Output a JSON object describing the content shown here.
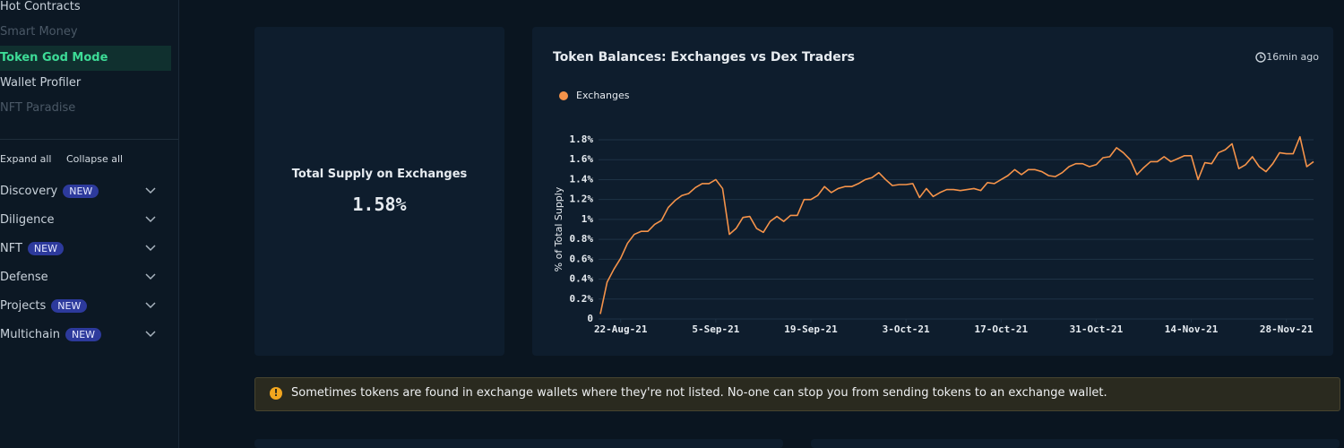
{
  "sidebar": {
    "nav_items": [
      "Hot Contracts",
      "Smart Money",
      "Token God Mode",
      "Wallet Profiler",
      "NFT Paradise"
    ],
    "expand_all": "Expand all",
    "collapse_all": "Collapse all",
    "sections": [
      {
        "label": "Discovery",
        "badge": "NEW"
      },
      {
        "label": "Diligence"
      },
      {
        "label": "NFT",
        "badge": "NEW"
      },
      {
        "label": "Defense"
      },
      {
        "label": "Projects",
        "badge": "NEW"
      },
      {
        "label": "Multichain",
        "badge": "NEW"
      }
    ]
  },
  "stat_card": {
    "title": "Total Supply on Exchanges",
    "value": "1.58%"
  },
  "chart_data": {
    "type": "line",
    "title": "Token Balances: Exchanges vs Dex Traders",
    "updated": "16min ago",
    "y_label": "% of Total Supply",
    "x": [
      "2021-08-19",
      "2021-08-20",
      "2021-08-21",
      "2021-08-22",
      "2021-08-23",
      "2021-08-24",
      "2021-08-25",
      "2021-08-26",
      "2021-08-27",
      "2021-08-28",
      "2021-08-29",
      "2021-08-30",
      "2021-08-31",
      "2021-09-01",
      "2021-09-02",
      "2021-09-03",
      "2021-09-04",
      "2021-09-05",
      "2021-09-06",
      "2021-09-07",
      "2021-09-08",
      "2021-09-09",
      "2021-09-10",
      "2021-09-11",
      "2021-09-12",
      "2021-09-13",
      "2021-09-14",
      "2021-09-15",
      "2021-09-16",
      "2021-09-17",
      "2021-09-18",
      "2021-09-19",
      "2021-09-20",
      "2021-09-21",
      "2021-09-22",
      "2021-09-23",
      "2021-09-24",
      "2021-09-25",
      "2021-09-26",
      "2021-09-27",
      "2021-09-28",
      "2021-09-29",
      "2021-09-30",
      "2021-10-01",
      "2021-10-02",
      "2021-10-03",
      "2021-10-04",
      "2021-10-05",
      "2021-10-06",
      "2021-10-07",
      "2021-10-08",
      "2021-10-09",
      "2021-10-10",
      "2021-10-11",
      "2021-10-12",
      "2021-10-13",
      "2021-10-14",
      "2021-10-15",
      "2021-10-16",
      "2021-10-17",
      "2021-10-18",
      "2021-10-19",
      "2021-10-20",
      "2021-10-21",
      "2021-10-22",
      "2021-10-23",
      "2021-10-24",
      "2021-10-25",
      "2021-10-26",
      "2021-10-27",
      "2021-10-28",
      "2021-10-29",
      "2021-10-30",
      "2021-10-31",
      "2021-11-01",
      "2021-11-02",
      "2021-11-03",
      "2021-11-04",
      "2021-11-05",
      "2021-11-06",
      "2021-11-07",
      "2021-11-08",
      "2021-11-09",
      "2021-11-10",
      "2021-11-11",
      "2021-11-12",
      "2021-11-13",
      "2021-11-14",
      "2021-11-15",
      "2021-11-16",
      "2021-11-17",
      "2021-11-18",
      "2021-11-19",
      "2021-11-20",
      "2021-11-21",
      "2021-11-22",
      "2021-11-23",
      "2021-11-24",
      "2021-11-25",
      "2021-11-26",
      "2021-11-27",
      "2021-11-28",
      "2021-11-29",
      "2021-11-30",
      "2021-12-01",
      "2021-12-02"
    ],
    "series": [
      {
        "name": "Exchanges",
        "color": "#f5934a",
        "values": [
          0.05,
          0.37,
          0.5,
          0.61,
          0.76,
          0.85,
          0.88,
          0.88,
          0.95,
          0.99,
          1.12,
          1.19,
          1.24,
          1.26,
          1.32,
          1.36,
          1.36,
          1.4,
          1.31,
          0.85,
          0.91,
          1.02,
          1.03,
          0.91,
          0.87,
          0.98,
          1.03,
          0.98,
          1.04,
          1.04,
          1.2,
          1.2,
          1.24,
          1.33,
          1.27,
          1.31,
          1.33,
          1.33,
          1.36,
          1.4,
          1.42,
          1.47,
          1.4,
          1.34,
          1.35,
          1.35,
          1.36,
          1.22,
          1.31,
          1.23,
          1.27,
          1.3,
          1.3,
          1.29,
          1.3,
          1.31,
          1.29,
          1.37,
          1.36,
          1.4,
          1.44,
          1.5,
          1.45,
          1.5,
          1.5,
          1.48,
          1.44,
          1.43,
          1.47,
          1.53,
          1.56,
          1.56,
          1.53,
          1.55,
          1.62,
          1.63,
          1.72,
          1.67,
          1.6,
          1.45,
          1.52,
          1.58,
          1.58,
          1.63,
          1.58,
          1.61,
          1.64,
          1.64,
          1.4,
          1.57,
          1.56,
          1.67,
          1.7,
          1.76,
          1.51,
          1.55,
          1.63,
          1.53,
          1.48,
          1.56,
          1.67,
          1.66,
          1.66,
          1.83,
          1.53,
          1.58
        ]
      }
    ],
    "xlim": [
      "2021-08-19",
      "2021-12-02"
    ],
    "xticks": [
      {
        "value": "2021-08-22",
        "label": "22-Aug-21"
      },
      {
        "value": "2021-09-05",
        "label": "5-Sep-21"
      },
      {
        "value": "2021-09-19",
        "label": "19-Sep-21"
      },
      {
        "value": "2021-10-03",
        "label": "3-Oct-21"
      },
      {
        "value": "2021-10-17",
        "label": "17-Oct-21"
      },
      {
        "value": "2021-10-31",
        "label": "31-Oct-21"
      },
      {
        "value": "2021-11-14",
        "label": "14-Nov-21"
      },
      {
        "value": "2021-11-28",
        "label": "28-Nov-21"
      }
    ],
    "ylim": [
      0,
      1.8
    ],
    "yticks": [
      0,
      {
        "value": 0.2,
        "label": "0.2%"
      },
      {
        "value": 0.4,
        "label": "0.4%"
      },
      {
        "value": 0.6,
        "label": "0.6%"
      },
      {
        "value": 0.8,
        "label": "0.8%"
      },
      {
        "value": 1,
        "label": "1%"
      },
      {
        "value": 1.2,
        "label": "1.2%"
      },
      {
        "value": 1.4,
        "label": "1.4%"
      },
      {
        "value": 1.6,
        "label": "1.6%"
      },
      {
        "value": 1.8,
        "label": "1.8%"
      }
    ],
    "grid": true
  },
  "notice": "Sometimes tokens are found in exchange wallets where they're not listed. No-one can stop you from sending tokens to an exchange wallet."
}
